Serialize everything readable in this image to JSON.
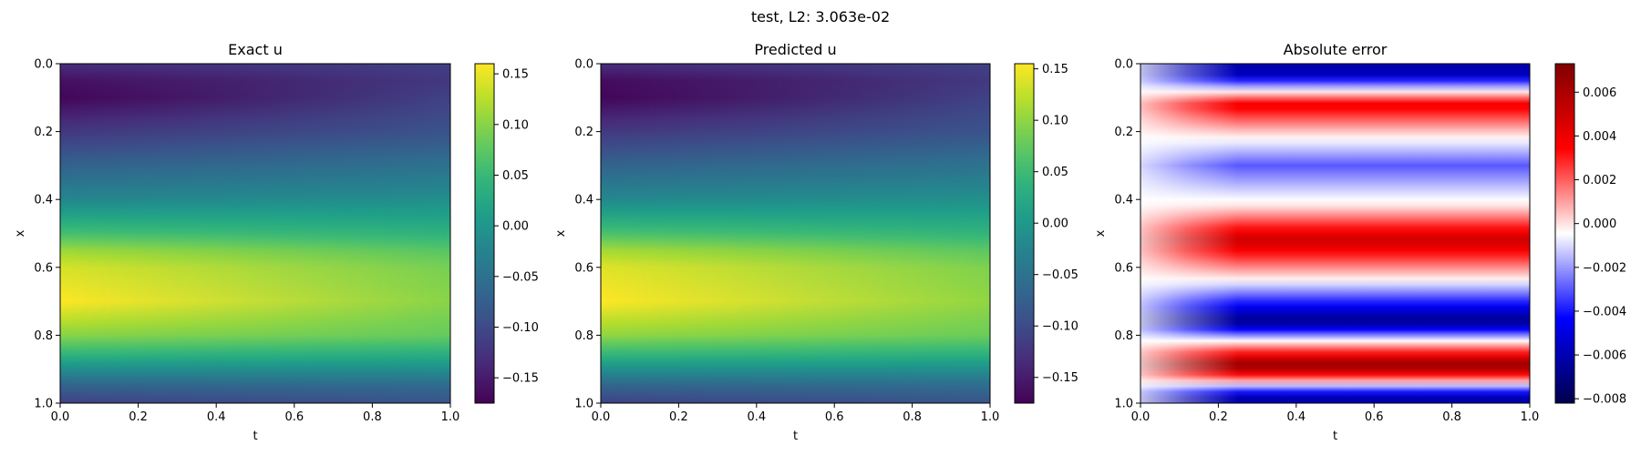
{
  "figure": {
    "suptitle": "test, L2: 3.063e-02"
  },
  "chart_data": [
    {
      "type": "heatmap",
      "title": "Exact u",
      "xlabel": "t",
      "ylabel": "x",
      "xlim": [
        0.0,
        1.0
      ],
      "ylim": [
        1.0,
        0.0
      ],
      "xticks": [
        "0.0",
        "0.2",
        "0.4",
        "0.6",
        "0.8",
        "1.0"
      ],
      "yticks": [
        "0.0",
        "0.2",
        "0.4",
        "0.6",
        "0.8",
        "1.0"
      ],
      "colormap": "viridis",
      "colorbar": {
        "range": [
          -0.175,
          0.16
        ],
        "ticks": [
          0.15,
          0.1,
          0.05,
          0.0,
          -0.05,
          -0.1,
          -0.15
        ],
        "tick_labels": [
          "0.15",
          "0.10",
          "0.05",
          "0.00",
          "−0.05",
          "−0.10",
          "−0.15"
        ]
      },
      "profile": {
        "x": [
          0.0,
          0.05,
          0.1,
          0.2,
          0.3,
          0.4,
          0.5,
          0.55,
          0.6,
          0.7,
          0.8,
          0.85,
          0.9,
          0.95,
          1.0
        ],
        "u_at_t0": [
          -0.13,
          -0.16,
          -0.17,
          -0.12,
          -0.07,
          -0.02,
          0.06,
          0.11,
          0.14,
          0.16,
          0.1,
          0.05,
          -0.01,
          -0.07,
          -0.11
        ],
        "u_at_t1": [
          -0.11,
          -0.12,
          -0.11,
          -0.09,
          -0.05,
          -0.01,
          0.04,
          0.07,
          0.09,
          0.1,
          0.08,
          0.04,
          -0.01,
          -0.06,
          -0.09
        ]
      }
    },
    {
      "type": "heatmap",
      "title": "Predicted u",
      "xlabel": "t",
      "ylabel": "x",
      "xlim": [
        0.0,
        1.0
      ],
      "ylim": [
        1.0,
        0.0
      ],
      "xticks": [
        "0.0",
        "0.2",
        "0.4",
        "0.6",
        "0.8",
        "1.0"
      ],
      "yticks": [
        "0.0",
        "0.2",
        "0.4",
        "0.6",
        "0.8",
        "1.0"
      ],
      "colormap": "viridis",
      "colorbar": {
        "range": [
          -0.175,
          0.155
        ],
        "ticks": [
          0.15,
          0.1,
          0.05,
          0.0,
          -0.05,
          -0.1,
          -0.15
        ],
        "tick_labels": [
          "0.15",
          "0.10",
          "0.05",
          "0.00",
          "−0.05",
          "−0.10",
          "−0.15"
        ]
      },
      "profile": {
        "x": [
          0.0,
          0.05,
          0.1,
          0.2,
          0.3,
          0.4,
          0.5,
          0.55,
          0.6,
          0.7,
          0.8,
          0.85,
          0.9,
          0.95,
          1.0
        ],
        "u_at_t0": [
          -0.13,
          -0.165,
          -0.17,
          -0.12,
          -0.07,
          -0.02,
          0.06,
          0.11,
          0.14,
          0.155,
          0.1,
          0.05,
          -0.01,
          -0.07,
          -0.11
        ],
        "u_at_t1": [
          -0.11,
          -0.12,
          -0.11,
          -0.09,
          -0.05,
          -0.01,
          0.04,
          0.07,
          0.09,
          0.1,
          0.08,
          0.04,
          -0.01,
          -0.06,
          -0.09
        ]
      }
    },
    {
      "type": "heatmap",
      "title": "Absolute error",
      "xlabel": "t",
      "ylabel": "x",
      "xlim": [
        0.0,
        1.0
      ],
      "ylim": [
        1.0,
        0.0
      ],
      "xticks": [
        "0.0",
        "0.2",
        "0.4",
        "0.6",
        "0.8",
        "1.0"
      ],
      "yticks": [
        "0.0",
        "0.2",
        "0.4",
        "0.6",
        "0.8",
        "1.0"
      ],
      "colormap": "seismic",
      "colorbar": {
        "range": [
          -0.0082,
          0.0073
        ],
        "ticks": [
          0.006,
          0.004,
          0.002,
          0.0,
          -0.002,
          -0.004,
          -0.006,
          -0.008
        ],
        "tick_labels": [
          "0.006",
          "0.004",
          "0.002",
          "0.000",
          "−0.002",
          "−0.004",
          "−0.006",
          "−0.008"
        ]
      },
      "bands": [
        {
          "x": 0.03,
          "value": -0.006
        },
        {
          "x": 0.12,
          "value": 0.004
        },
        {
          "x": 0.21,
          "value": 0.0
        },
        {
          "x": 0.3,
          "value": -0.003
        },
        {
          "x": 0.42,
          "value": 0.0
        },
        {
          "x": 0.52,
          "value": 0.005
        },
        {
          "x": 0.63,
          "value": 0.0
        },
        {
          "x": 0.76,
          "value": -0.007
        },
        {
          "x": 0.82,
          "value": 0.0
        },
        {
          "x": 0.89,
          "value": 0.007
        },
        {
          "x": 0.94,
          "value": 0.0
        },
        {
          "x": 0.98,
          "value": -0.006
        }
      ]
    }
  ]
}
